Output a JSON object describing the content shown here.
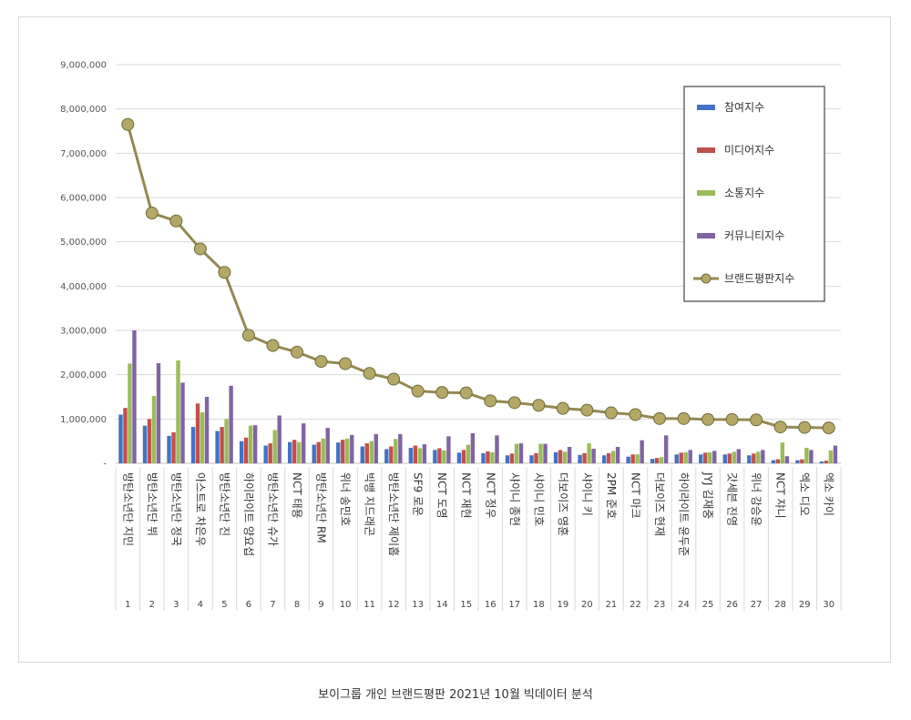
{
  "caption": "보이그룹 개인 브랜드평판 2021년 10월 빅데이터 분석",
  "chart_data": {
    "type": "bar",
    "y_ticks": [
      "-",
      "1,000,000",
      "2,000,000",
      "3,000,000",
      "4,000,000",
      "5,000,000",
      "6,000,000",
      "7,000,000",
      "8,000,000",
      "9,000,000"
    ],
    "ylim": [
      0,
      9000000
    ],
    "grid": true,
    "legend_position": "top-right",
    "categories": [
      "방탄소년단 지민",
      "방탄소년단 뷔",
      "방탄소년단 정국",
      "아스트로 차은우",
      "방탄소년단 진",
      "하이라이트 양요섭",
      "방탄소년단 슈가",
      "NCT 태용",
      "방탄소년단 RM",
      "위너 송민호",
      "빅뱅 지드래곤",
      "방탄소년단 제이홉",
      "SF9 로운",
      "NCT 도영",
      "NCT 재현",
      "NCT 정우",
      "샤이니 종현",
      "샤이니 민호",
      "더보이즈 영훈",
      "샤이니 키",
      "2PM 준호",
      "NCT 마크",
      "더보이즈 현재",
      "하이라이트 윤두준",
      "JYJ 김재중",
      "갓세븐 진영",
      "위너 강승윤",
      "NCT 쟈니",
      "엑소 디오",
      "엑소 카이"
    ],
    "ranks": [
      "1",
      "2",
      "3",
      "4",
      "5",
      "6",
      "7",
      "8",
      "9",
      "10",
      "11",
      "12",
      "13",
      "14",
      "15",
      "16",
      "17",
      "18",
      "19",
      "20",
      "21",
      "22",
      "23",
      "24",
      "25",
      "26",
      "27",
      "28",
      "29",
      "30"
    ],
    "series": [
      {
        "name": "참여지수",
        "type": "bar",
        "color": "#4472C4",
        "values": [
          1100000,
          850000,
          620000,
          820000,
          730000,
          500000,
          400000,
          480000,
          420000,
          470000,
          380000,
          320000,
          350000,
          300000,
          240000,
          230000,
          180000,
          180000,
          250000,
          190000,
          180000,
          150000,
          100000,
          200000,
          200000,
          200000,
          180000,
          70000,
          70000,
          40000
        ]
      },
      {
        "name": "미디어지수",
        "type": "bar",
        "color": "#C0504D",
        "values": [
          1250000,
          1000000,
          700000,
          1350000,
          820000,
          580000,
          450000,
          530000,
          480000,
          530000,
          450000,
          380000,
          400000,
          340000,
          300000,
          270000,
          220000,
          230000,
          300000,
          230000,
          230000,
          200000,
          120000,
          240000,
          240000,
          220000,
          220000,
          90000,
          90000,
          60000
        ]
      },
      {
        "name": "소통지수",
        "type": "bar",
        "color": "#9BBB59",
        "values": [
          2250000,
          1520000,
          2320000,
          1150000,
          1000000,
          850000,
          750000,
          480000,
          560000,
          560000,
          500000,
          550000,
          340000,
          290000,
          420000,
          250000,
          440000,
          440000,
          260000,
          450000,
          280000,
          200000,
          140000,
          250000,
          250000,
          260000,
          260000,
          470000,
          350000,
          290000
        ]
      },
      {
        "name": "커뮤니티지수",
        "type": "bar",
        "color": "#8064A2",
        "values": [
          3000000,
          2260000,
          1820000,
          1500000,
          1750000,
          860000,
          1080000,
          900000,
          800000,
          640000,
          660000,
          660000,
          430000,
          610000,
          680000,
          630000,
          450000,
          440000,
          370000,
          330000,
          370000,
          520000,
          630000,
          300000,
          280000,
          320000,
          300000,
          160000,
          300000,
          400000
        ]
      },
      {
        "name": "브랜드평판지수",
        "type": "line",
        "color": "#938953",
        "values": [
          7650000,
          5650000,
          5470000,
          4840000,
          4310000,
          2890000,
          2660000,
          2510000,
          2300000,
          2250000,
          2030000,
          1900000,
          1630000,
          1600000,
          1590000,
          1410000,
          1370000,
          1310000,
          1240000,
          1200000,
          1140000,
          1100000,
          1010000,
          1010000,
          990000,
          990000,
          980000,
          820000,
          810000,
          800000
        ]
      }
    ]
  }
}
